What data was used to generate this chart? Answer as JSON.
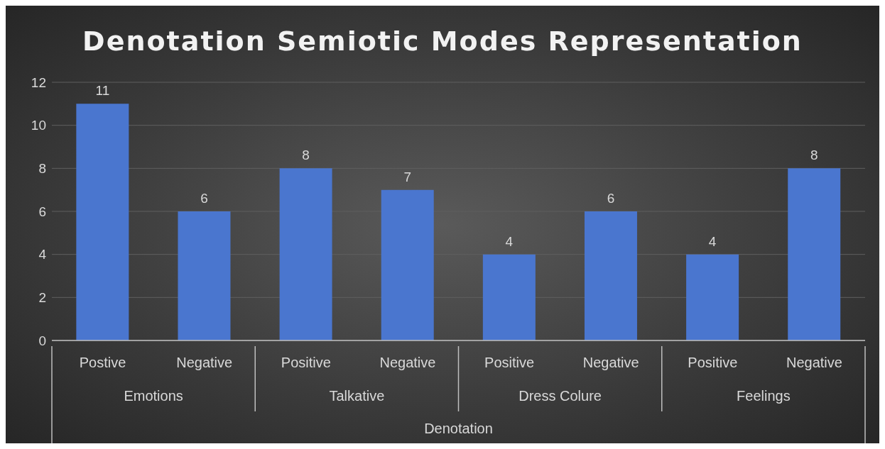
{
  "chart_data": {
    "type": "bar",
    "title": "Denotation Semiotic Modes Representation",
    "xlabel": "Denotation",
    "categories": [
      "Postive",
      "Negative",
      "Positive",
      "Negative",
      "Positive",
      "Negative",
      "Positive",
      "Negative"
    ],
    "values": [
      11,
      6,
      8,
      7,
      4,
      6,
      4,
      8
    ],
    "color": "#4a76cf",
    "annotations": [
      "Emotions",
      "Talkative",
      "Dress Colure",
      "Feelings"
    ],
    "ylim": [
      0,
      12
    ],
    "yticks": [
      0,
      2,
      4,
      6,
      8,
      10,
      12
    ],
    "grid": "y",
    "data_labels": true,
    "legend": false
  }
}
